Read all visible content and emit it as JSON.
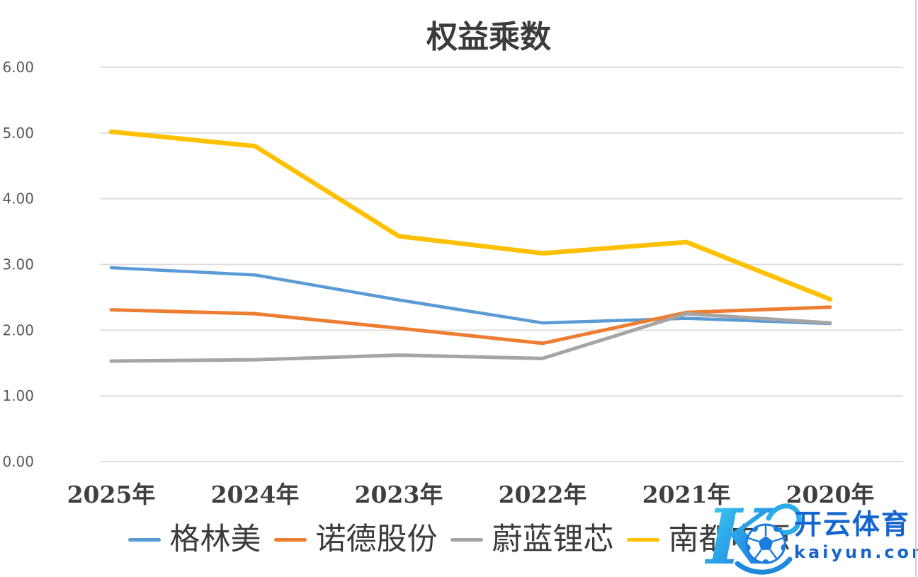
{
  "chart_data": {
    "type": "line",
    "title": "权益乘数",
    "categories": [
      "2025年",
      "2024年",
      "2023年",
      "2022年",
      "2021年",
      "2020年"
    ],
    "series": [
      {
        "name": "格林美",
        "color": "#5B9BD5",
        "values": [
          2.95,
          2.84,
          2.46,
          2.11,
          2.18,
          2.1
        ]
      },
      {
        "name": "诺德股份",
        "color": "#ED7D31",
        "values": [
          2.31,
          2.25,
          2.03,
          1.8,
          2.27,
          2.35
        ]
      },
      {
        "name": "蔚蓝锂芯",
        "color": "#A5A5A5",
        "values": [
          1.53,
          1.55,
          1.62,
          1.57,
          2.25,
          2.11
        ]
      },
      {
        "name": "南都电源",
        "color": "#FFC000",
        "values": [
          5.02,
          4.8,
          3.43,
          3.17,
          3.34,
          2.47
        ]
      }
    ],
    "xlabel": "",
    "ylabel": "",
    "ylim": [
      0,
      6
    ],
    "ytick_labels": [
      "0.00",
      "1.00",
      "2.00",
      "3.00",
      "4.00",
      "5.00",
      "6.00"
    ],
    "grid": true,
    "legend_position": "bottom",
    "gridline_color": "#DBDBDB",
    "axis_text_color": "#595959",
    "label_text_color": "#3f3f3f"
  },
  "watermark": {
    "brand": "开云体育",
    "domain": "kaiyun.com",
    "logo": "kaiyun-k-soccerball-logo",
    "color": "#1765CF",
    "logo_gradient": [
      "#3FD4F5",
      "#1568D6"
    ]
  }
}
